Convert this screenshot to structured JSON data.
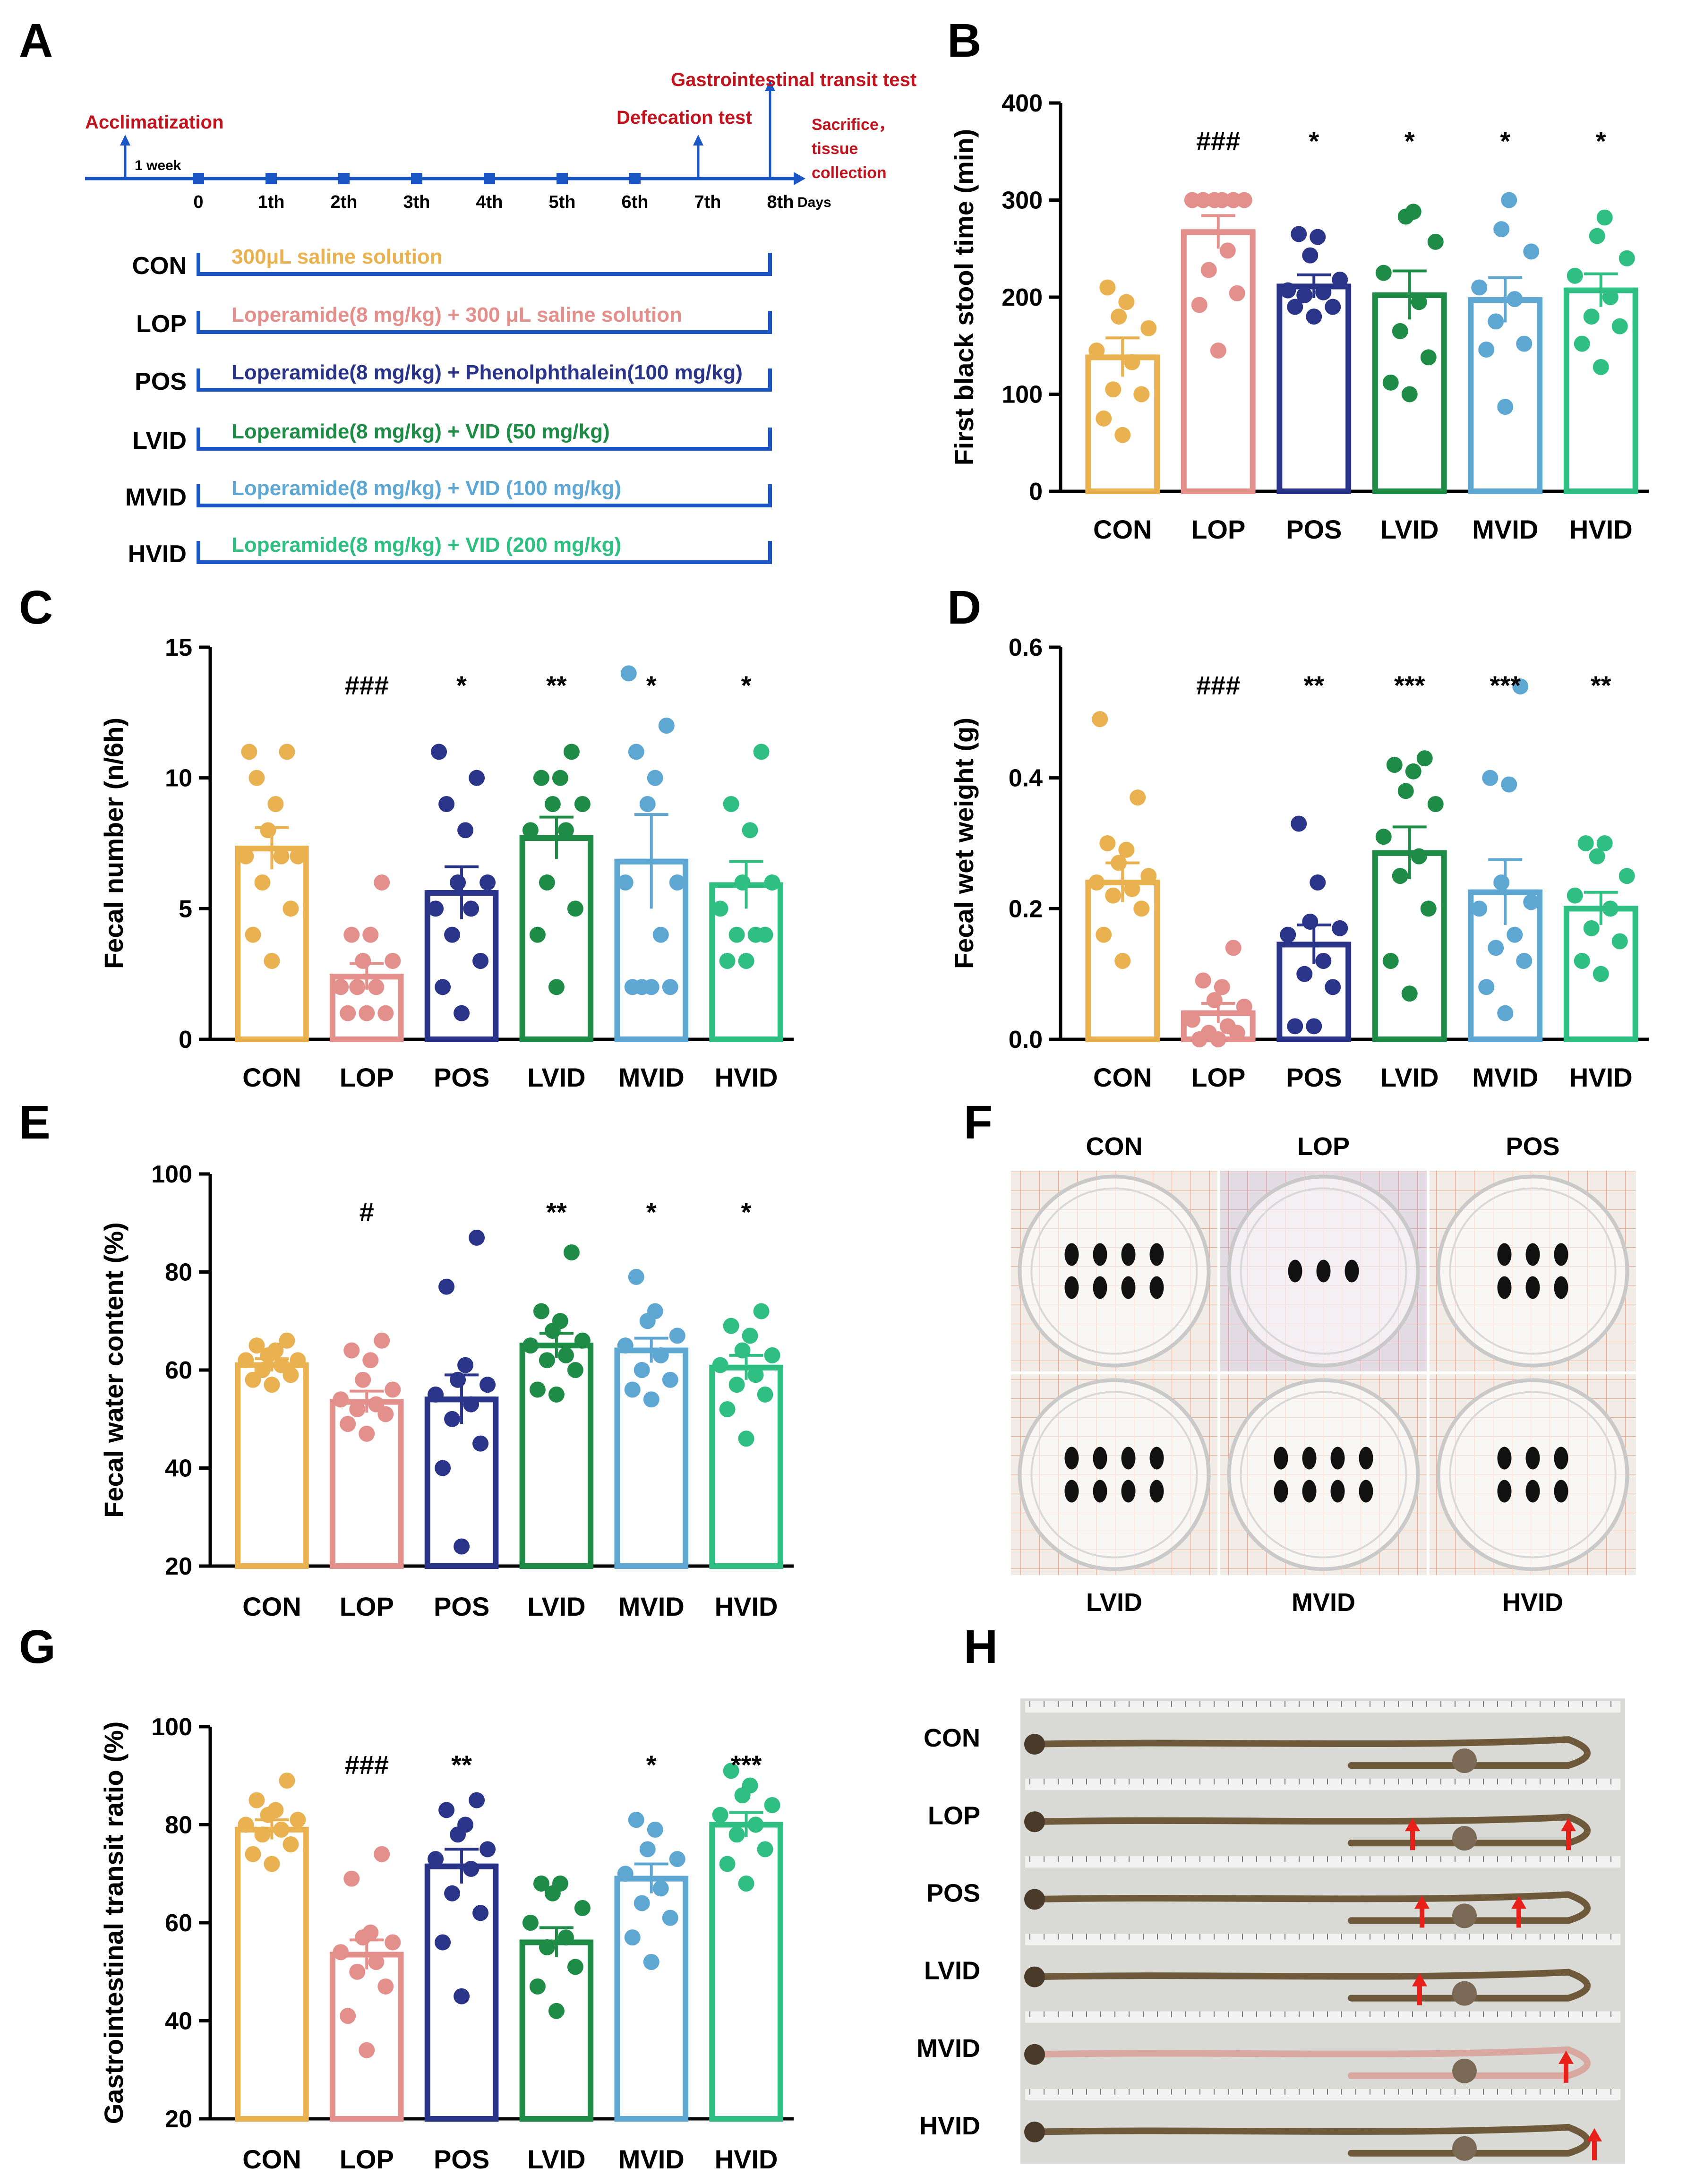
{
  "colors": {
    "CON": "#E9B14F",
    "LOP": "#E38F8C",
    "POS": "#2A3589",
    "LVID": "#1E8C46",
    "MVID": "#5EA7D3",
    "HVID": "#2FBF82",
    "timeline": "#1A56C4",
    "label_red": "#C0141E",
    "arrow_red": "#E8201A"
  },
  "panel_letters": {
    "A": "A",
    "B": "B",
    "C": "C",
    "D": "D",
    "E": "E",
    "F": "F",
    "G": "G",
    "H": "H"
  },
  "timeline": {
    "acclimatization": "Acclimatization",
    "one_week": "1 week",
    "defecation": "Defecation test",
    "gi_transit": "Gastrointestinal transit test",
    "sacrifice": [
      "Sacrifice，",
      "tissue",
      "collection"
    ],
    "days_unit": "Days",
    "day_ticks": [
      "0",
      "1th",
      "2th",
      "3th",
      "4th",
      "5th",
      "6th",
      "7th",
      "8th"
    ],
    "groups": [
      {
        "name": "CON",
        "treatment": "300μL  saline solution"
      },
      {
        "name": "LOP",
        "treatment": "Loperamide(8 mg/kg) + 300 μL saline solution"
      },
      {
        "name": "POS",
        "treatment": "Loperamide(8 mg/kg) + Phenolphthalein(100 mg/kg)"
      },
      {
        "name": "LVID",
        "treatment": "Loperamide(8 mg/kg) + VID (50 mg/kg)"
      },
      {
        "name": "MVID",
        "treatment": "Loperamide(8 mg/kg) + VID (100 mg/kg)"
      },
      {
        "name": "HVID",
        "treatment": "Loperamide(8 mg/kg) + VID (200 mg/kg)"
      }
    ]
  },
  "chart_data": [
    {
      "id": "B",
      "type": "bar",
      "categories": [
        "CON",
        "LOP",
        "POS",
        "LVID",
        "MVID",
        "HVID"
      ],
      "ylabel": "First black stool time (min)",
      "ylim": [
        0,
        400
      ],
      "yticks": [
        0,
        100,
        200,
        300,
        400
      ],
      "ytick_labels": [
        "0",
        "100",
        "200",
        "300",
        "400"
      ],
      "means": [
        138,
        267,
        211,
        202,
        197,
        207
      ],
      "sem": [
        20,
        17,
        12,
        25,
        23,
        17
      ],
      "sig": [
        "",
        "###",
        "*",
        "*",
        "*",
        "*"
      ],
      "points": [
        [
          58,
          75,
          100,
          105,
          133,
          145,
          168,
          180,
          195,
          210
        ],
        [
          145,
          192,
          204,
          228,
          248,
          300,
          300,
          300,
          300,
          300,
          300
        ],
        [
          180,
          190,
          190,
          202,
          205,
          207,
          218,
          243,
          262,
          265
        ],
        [
          100,
          112,
          138,
          165,
          195,
          225,
          257,
          283,
          288
        ],
        [
          87,
          146,
          152,
          175,
          198,
          210,
          247,
          270,
          300
        ],
        [
          128,
          152,
          170,
          180,
          200,
          222,
          240,
          263,
          282
        ]
      ]
    },
    {
      "id": "C",
      "type": "bar",
      "categories": [
        "CON",
        "LOP",
        "POS",
        "LVID",
        "MVID",
        "HVID"
      ],
      "ylabel": "Fecal number (n/6h)",
      "ylim": [
        0,
        15
      ],
      "yticks": [
        0,
        5,
        10,
        15
      ],
      "ytick_labels": [
        "0",
        "5",
        "10",
        "15"
      ],
      "means": [
        7.3,
        2.4,
        5.6,
        7.7,
        6.8,
        5.9
      ],
      "sem": [
        0.8,
        0.5,
        1.0,
        0.8,
        1.8,
        0.9
      ],
      "sig": [
        "",
        "###",
        "*",
        "**",
        "*",
        "*"
      ],
      "points": [
        [
          3,
          4,
          5,
          6,
          7,
          7,
          7,
          8,
          9,
          10,
          11,
          11
        ],
        [
          1,
          1,
          1,
          2,
          2,
          2,
          3,
          3,
          4,
          4,
          6
        ],
        [
          1,
          2,
          3,
          4,
          5,
          5,
          6,
          6,
          8,
          9,
          10,
          11
        ],
        [
          2,
          4,
          5,
          6,
          8,
          8,
          9,
          9,
          10,
          10,
          11
        ],
        [
          2,
          2,
          2,
          2,
          4,
          6,
          6,
          9,
          10,
          11,
          12,
          14
        ],
        [
          3,
          3,
          4,
          4,
          4,
          5,
          6,
          6,
          8,
          9,
          11
        ]
      ]
    },
    {
      "id": "D",
      "type": "bar",
      "categories": [
        "CON",
        "LOP",
        "POS",
        "LVID",
        "MVID",
        "HVID"
      ],
      "ylabel": "Fecal wet weight (g)",
      "ylim": [
        0,
        0.6
      ],
      "yticks": [
        0,
        0.2,
        0.4,
        0.6
      ],
      "ytick_labels": [
        "0.0",
        "0.2",
        "0.4",
        "0.6"
      ],
      "means": [
        0.24,
        0.04,
        0.145,
        0.285,
        0.225,
        0.2
      ],
      "sem": [
        0.03,
        0.015,
        0.03,
        0.04,
        0.05,
        0.025
      ],
      "sig": [
        "",
        "###",
        "**",
        "***",
        "***",
        "**"
      ],
      "points": [
        [
          0.12,
          0.16,
          0.2,
          0.22,
          0.23,
          0.24,
          0.25,
          0.27,
          0.29,
          0.3,
          0.37,
          0.49
        ],
        [
          0.0,
          0.0,
          0.01,
          0.01,
          0.02,
          0.03,
          0.05,
          0.06,
          0.08,
          0.09,
          0.14
        ],
        [
          0.02,
          0.02,
          0.08,
          0.1,
          0.12,
          0.16,
          0.17,
          0.18,
          0.24,
          0.33
        ],
        [
          0.07,
          0.12,
          0.2,
          0.25,
          0.28,
          0.31,
          0.36,
          0.38,
          0.41,
          0.42,
          0.43
        ],
        [
          0.04,
          0.08,
          0.12,
          0.14,
          0.16,
          0.2,
          0.21,
          0.24,
          0.39,
          0.4,
          0.54
        ],
        [
          0.1,
          0.12,
          0.15,
          0.17,
          0.2,
          0.22,
          0.25,
          0.28,
          0.3,
          0.3
        ]
      ]
    },
    {
      "id": "E",
      "type": "bar",
      "categories": [
        "CON",
        "LOP",
        "POS",
        "LVID",
        "MVID",
        "HVID"
      ],
      "ylabel": "Fecal water content (%)",
      "ylim": [
        20,
        100
      ],
      "yticks": [
        20,
        40,
        60,
        80,
        100
      ],
      "ytick_labels": [
        "20",
        "40",
        "60",
        "80",
        "100"
      ],
      "means": [
        61,
        53.5,
        54,
        65,
        64,
        60.5
      ],
      "sem": [
        1.3,
        2.2,
        5,
        2.5,
        2.5,
        2.5
      ],
      "sig": [
        "",
        "#",
        "",
        "**",
        "*",
        "*"
      ],
      "points": [
        [
          57,
          58,
          59,
          60,
          61,
          62,
          62,
          63,
          64,
          65,
          66
        ],
        [
          47,
          49,
          51,
          52,
          53,
          54,
          56,
          58,
          62,
          64,
          66
        ],
        [
          24,
          40,
          45,
          50,
          53,
          55,
          57,
          58,
          61,
          77,
          87
        ],
        [
          55,
          56,
          60,
          62,
          63,
          65,
          66,
          68,
          70,
          72,
          84
        ],
        [
          54,
          56,
          58,
          60,
          63,
          65,
          67,
          70,
          72,
          79
        ],
        [
          46,
          52,
          55,
          57,
          59,
          61,
          63,
          64,
          67,
          69,
          72
        ]
      ]
    },
    {
      "id": "G",
      "type": "bar",
      "categories": [
        "CON",
        "LOP",
        "POS",
        "LVID",
        "MVID",
        "HVID"
      ],
      "ylabel": "Gastrointestinal transit ratio (%)",
      "ylim": [
        20,
        100
      ],
      "yticks": [
        20,
        40,
        60,
        80,
        100
      ],
      "ytick_labels": [
        "20",
        "40",
        "60",
        "80",
        "100"
      ],
      "means": [
        79,
        53.5,
        71.5,
        56,
        69,
        80
      ],
      "sem": [
        2,
        3,
        3.5,
        3,
        3,
        2.5
      ],
      "sig": [
        "",
        "###",
        "**",
        "",
        "*",
        "***"
      ],
      "points": [
        [
          72,
          74,
          76,
          78,
          79,
          80,
          81,
          82,
          83,
          85,
          89
        ],
        [
          34,
          41,
          47,
          50,
          52,
          54,
          56,
          57,
          58,
          69,
          74
        ],
        [
          45,
          56,
          62,
          66,
          71,
          73,
          75,
          78,
          80,
          83,
          85
        ],
        [
          42,
          47,
          51,
          55,
          57,
          60,
          63,
          66,
          68,
          68
        ],
        [
          52,
          57,
          61,
          64,
          67,
          70,
          73,
          75,
          79,
          81
        ],
        [
          68,
          72,
          75,
          78,
          80,
          82,
          84,
          86,
          88,
          91
        ]
      ]
    }
  ],
  "photo_F": {
    "top_labels": [
      "CON",
      "LOP",
      "POS"
    ],
    "bottom_labels": [
      "LVID",
      "MVID",
      "HVID"
    ],
    "pellet_counts": [
      8,
      3,
      6,
      8,
      8,
      6
    ]
  },
  "photo_H": {
    "rows": [
      "CON",
      "LOP",
      "POS",
      "LVID",
      "MVID",
      "HVID"
    ],
    "arrow_counts": [
      0,
      2,
      2,
      1,
      1,
      1
    ]
  }
}
